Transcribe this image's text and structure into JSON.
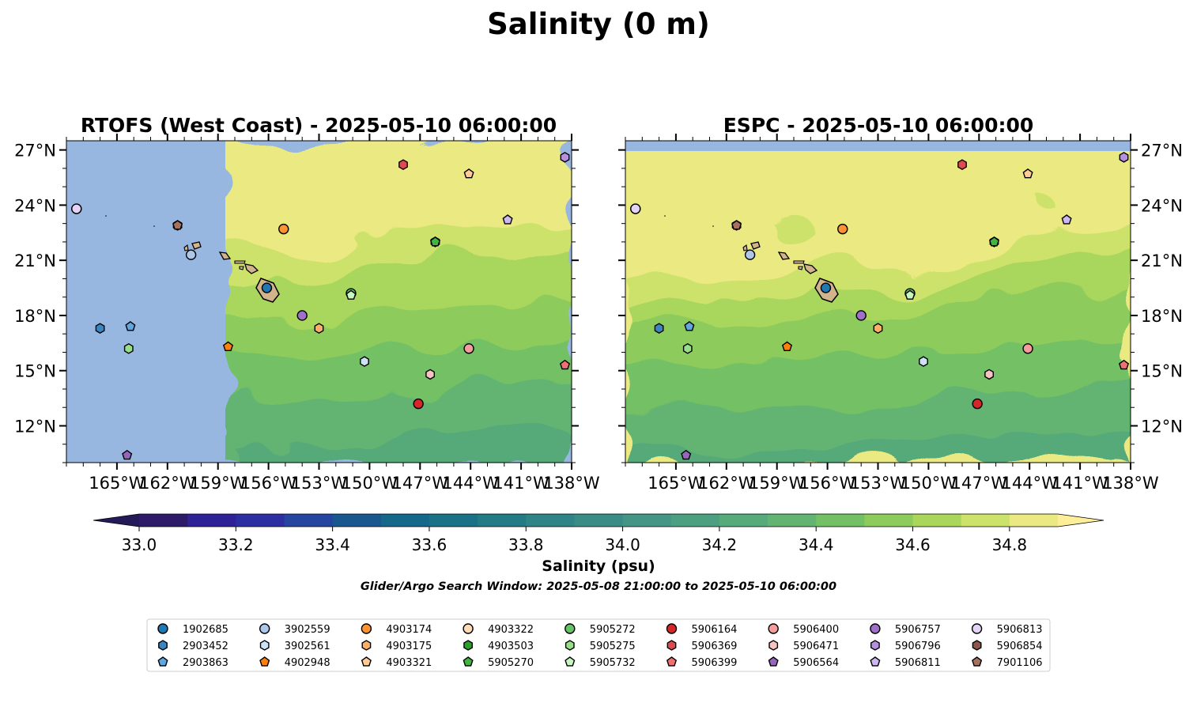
{
  "figure_title": "Salinity (0 m)",
  "chart_data": {
    "type": "heatmap",
    "panels": [
      {
        "title": "RTOFS (West Coast) - 2025-05-10 06:00:00",
        "lon_range": [
          -168,
          -138
        ],
        "lat_range": [
          10,
          27.5
        ],
        "model_domain_west_edge_lon": -158.6,
        "y_ticks_side": "left"
      },
      {
        "title": "ESPC - 2025-05-10 06:00:00",
        "lon_range": [
          -168,
          -138
        ],
        "lat_range": [
          10,
          27.5
        ],
        "y_ticks_side": "right"
      }
    ],
    "x_tick_values": [
      -165,
      -162,
      -159,
      -156,
      -153,
      -150,
      -147,
      -144,
      -141,
      -138
    ],
    "x_tick_labels": [
      "165°W",
      "162°W",
      "159°W",
      "156°W",
      "153°W",
      "150°W",
      "147°W",
      "144°W",
      "141°W",
      "138°W"
    ],
    "y_tick_values": [
      12,
      15,
      18,
      21,
      24,
      27
    ],
    "y_tick_labels": [
      "12°N",
      "15°N",
      "18°N",
      "21°N",
      "24°N",
      "27°N"
    ],
    "colorbar": {
      "label": "Salinity (psu)",
      "range": [
        33.0,
        34.9
      ],
      "step": 0.1,
      "extend": "both",
      "tick_values": [
        33.0,
        33.2,
        33.4,
        33.6,
        33.8,
        34.0,
        34.2,
        34.4,
        34.6,
        34.8
      ],
      "tick_labels": [
        "33.0",
        "33.2",
        "33.4",
        "33.6",
        "33.8",
        "34.0",
        "34.2",
        "34.4",
        "34.6",
        "34.8"
      ],
      "colors": [
        "#2d1a68",
        "#2e2296",
        "#2c2fa1",
        "#2545a0",
        "#18588f",
        "#146889",
        "#1b7286",
        "#237b86",
        "#2e8486",
        "#3a8c86",
        "#449585",
        "#4d9f81",
        "#57aa79",
        "#63b473",
        "#73c065",
        "#8ccb5c",
        "#a9d65b",
        "#cce26a",
        "#ebe981"
      ],
      "under_color": "#241a57",
      "over_color": "#fdee9a",
      "nodata_color": "#97b6e0"
    },
    "window_text": "Glider/Argo Search Window: 2025-05-08 21:00:00 to 2025-05-10 06:00:00",
    "observations": [
      {
        "id": "1902685",
        "lon": -156.1,
        "lat": 19.5,
        "marker": "circle",
        "color": "#1f77b4"
      },
      {
        "id": "2903452",
        "lon": -166.0,
        "lat": 17.3,
        "marker": "hexagon",
        "color": "#3b86c1"
      },
      {
        "id": "2903863",
        "lon": -164.2,
        "lat": 17.4,
        "marker": "pentagon",
        "color": "#5fa7e0"
      },
      {
        "id": "3902559",
        "lon": -160.6,
        "lat": 21.3,
        "marker": "circle",
        "color": "#aec7e8"
      },
      {
        "id": "3902561",
        "lon": -150.3,
        "lat": 15.5,
        "marker": "hexagon",
        "color": "#cce3f6"
      },
      {
        "id": "4902948",
        "lon": -158.4,
        "lat": 16.3,
        "marker": "pentagon",
        "color": "#ff7f0e"
      },
      {
        "id": "4903174",
        "lon": -155.1,
        "lat": 22.7,
        "marker": "circle",
        "color": "#ff9333"
      },
      {
        "id": "4903175",
        "lon": -153.0,
        "lat": 17.3,
        "marker": "hexagon",
        "color": "#ffb067"
      },
      {
        "id": "4903321",
        "lon": -144.1,
        "lat": 25.7,
        "marker": "pentagon",
        "color": "#ffcc99"
      },
      {
        "id": "4903322",
        "lon": -167.4,
        "lat": 23.8,
        "marker": "circle",
        "color": "#ffdbb8"
      },
      {
        "id": "4903503",
        "lon": -146.1,
        "lat": 22.0,
        "marker": "hexagon",
        "color": "#2ca02c"
      },
      {
        "id": "5905270",
        "lon": -146.1,
        "lat": 22.0,
        "marker": "pentagon",
        "color": "#42b442"
      },
      {
        "id": "5905272",
        "lon": -151.1,
        "lat": 19.2,
        "marker": "circle",
        "color": "#67c267"
      },
      {
        "id": "5905275",
        "lon": -164.3,
        "lat": 16.2,
        "marker": "hexagon",
        "color": "#98df8a"
      },
      {
        "id": "5905732",
        "lon": -151.1,
        "lat": 19.1,
        "marker": "pentagon",
        "color": "#c8f6c0"
      },
      {
        "id": "5906164",
        "lon": -147.1,
        "lat": 13.2,
        "marker": "circle",
        "color": "#d62728"
      },
      {
        "id": "5906369",
        "lon": -148.0,
        "lat": 26.2,
        "marker": "hexagon",
        "color": "#e04a4f"
      },
      {
        "id": "5906399",
        "lon": -138.4,
        "lat": 15.3,
        "marker": "pentagon",
        "color": "#ef7070"
      },
      {
        "id": "5906400",
        "lon": -144.1,
        "lat": 16.2,
        "marker": "circle",
        "color": "#f59d9d"
      },
      {
        "id": "5906471",
        "lon": -146.4,
        "lat": 14.8,
        "marker": "hexagon",
        "color": "#f8c4c2"
      },
      {
        "id": "5906564",
        "lon": -164.4,
        "lat": 10.4,
        "marker": "pentagon",
        "color": "#9467bd"
      },
      {
        "id": "5906757",
        "lon": -154.0,
        "lat": 18.0,
        "marker": "circle",
        "color": "#9e70c9"
      },
      {
        "id": "5906796",
        "lon": -138.4,
        "lat": 26.6,
        "marker": "hexagon",
        "color": "#b78fdf"
      },
      {
        "id": "5906811",
        "lon": -141.8,
        "lat": 23.2,
        "marker": "pentagon",
        "color": "#cfb7f2"
      },
      {
        "id": "5906813",
        "lon": -167.4,
        "lat": 23.8,
        "marker": "circle",
        "color": "#e3d4f7"
      },
      {
        "id": "5906854",
        "lon": -161.4,
        "lat": 22.9,
        "marker": "hexagon",
        "color": "#8c564b"
      },
      {
        "id": "7901106",
        "lon": -161.4,
        "lat": 22.9,
        "marker": "pentagon",
        "color": "#a6725f"
      }
    ]
  }
}
